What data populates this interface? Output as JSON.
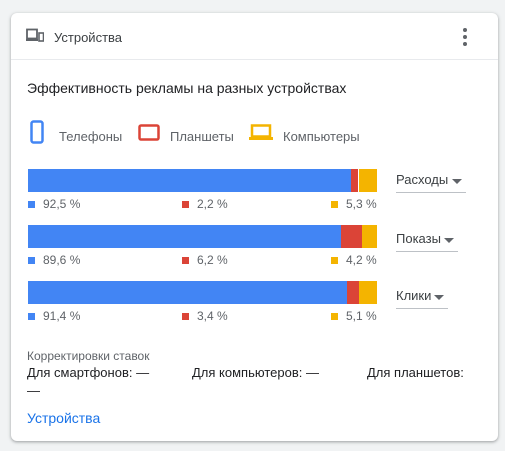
{
  "card": {
    "title": "Устройства",
    "header_icon": "devices-icon",
    "menu_icon": "more-vert-icon"
  },
  "chart_title": "Эффективность рекламы на разных устройствах",
  "legend": [
    {
      "label": "Телефоны",
      "icon": "phone-icon",
      "color": "#4285f4"
    },
    {
      "label": "Планшеты",
      "icon": "tablet-icon",
      "color": "#db4437"
    },
    {
      "label": "Компьютеры",
      "icon": "laptop-icon",
      "color": "#f4b400"
    }
  ],
  "metrics": [
    {
      "label": "Расходы",
      "values": [
        92.5,
        2.2,
        5.3
      ],
      "labels": [
        "92,5 %",
        "2,2 %",
        "5,3 %"
      ]
    },
    {
      "label": "Показы",
      "values": [
        89.6,
        6.2,
        4.2
      ],
      "labels": [
        "89,6 %",
        "6,2 %",
        "4,2 %"
      ]
    },
    {
      "label": "Клики",
      "values": [
        91.4,
        3.4,
        5.1
      ],
      "labels": [
        "91,4 %",
        "3,4 %",
        "5,1 %"
      ]
    }
  ],
  "chart_data": {
    "type": "bar",
    "stacked": true,
    "orientation": "horizontal",
    "categories": [
      "Расходы",
      "Показы",
      "Клики"
    ],
    "series": [
      {
        "name": "Телефоны",
        "values": [
          92.5,
          89.6,
          91.4
        ],
        "color": "#4285f4"
      },
      {
        "name": "Планшеты",
        "values": [
          2.2,
          6.2,
          3.4
        ],
        "color": "#db4437"
      },
      {
        "name": "Компьютеры",
        "values": [
          5.3,
          4.2,
          5.1
        ],
        "color": "#f4b400"
      }
    ],
    "unit": "%",
    "xlim": [
      0,
      100
    ],
    "title": "Эффективность рекламы на разных устройствах",
    "legend_position": "top"
  },
  "bid_adjustments": {
    "title": "Корректировки ставок",
    "smartphones": "Для смартфонов: —",
    "computers": "Для компьютеров: —",
    "tablets_label": "Для планшетов:",
    "tablets_value": "—"
  },
  "footer_link": "Устройства"
}
